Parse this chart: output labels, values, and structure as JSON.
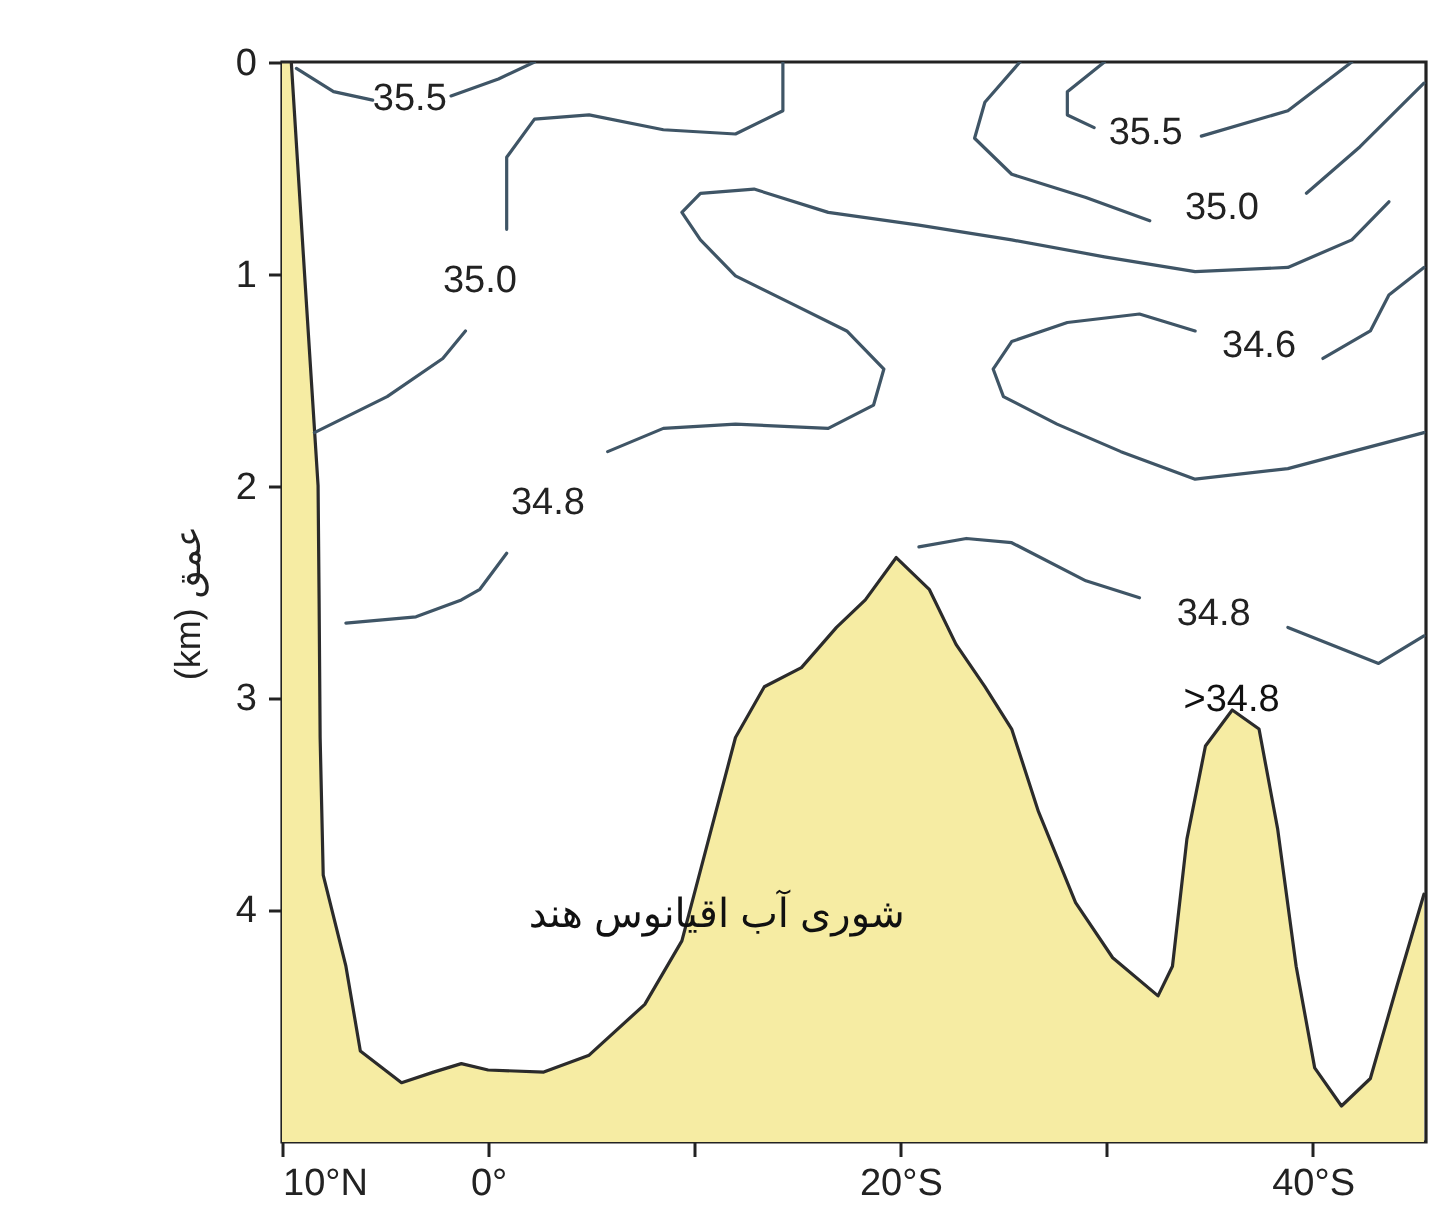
{
  "chart_data": {
    "type": "line",
    "ylabel": "(km) عمق",
    "xlim": [
      10,
      -45.5
    ],
    "ylim": [
      5.1,
      0
    ],
    "xticks": [
      {
        "value": 10,
        "label": "10°N"
      },
      {
        "value": 0,
        "label": "0°"
      },
      {
        "value": -10,
        "label": null
      },
      {
        "value": -20,
        "label": "20°S"
      },
      {
        "value": -30,
        "label": null
      },
      {
        "value": -40,
        "label": "40°S"
      }
    ],
    "yticks": [
      0,
      1,
      2,
      3,
      4
    ],
    "grid": false,
    "series": [
      {
        "type": "line",
        "color": "#2b2b2b",
        "x": [
          10,
          9.55,
          8.9,
          8.25,
          8.2,
          8.15,
          8.0,
          6.9,
          6.2,
          4.2,
          2.65,
          1.3,
          0.0,
          -2.7,
          -4.9,
          -7.6,
          -9.4,
          -10.7,
          -12.0,
          -13.4,
          -15.2,
          -16.9,
          -18.3,
          -19.8,
          -21.4,
          -22.7,
          -24.1,
          -25.4,
          -26.7,
          -28.5,
          -30.3,
          -32.5,
          -33.2,
          -33.9,
          -34.8,
          -36.1,
          -37.4,
          -38.3,
          -39.2,
          -40.1,
          -41.4,
          -42.8,
          -44.1,
          -45.4
        ],
        "values": [
          0,
          0,
          1.01,
          2.0,
          2.54,
          3.19,
          3.84,
          4.27,
          4.67,
          4.82,
          4.77,
          4.73,
          4.76,
          4.77,
          4.69,
          4.45,
          4.15,
          3.67,
          3.19,
          2.95,
          2.86,
          2.67,
          2.54,
          2.34,
          2.49,
          2.75,
          2.95,
          3.15,
          3.54,
          3.97,
          4.23,
          4.41,
          4.27,
          3.67,
          3.23,
          3.06,
          3.15,
          3.62,
          4.27,
          4.75,
          4.93,
          4.8,
          4.36,
          3.93
        ],
        "lower": [
          0,
          0,
          1.01,
          2.0,
          2.54,
          3.19,
          3.84,
          4.27,
          4.67,
          4.82,
          4.77,
          4.73,
          4.76,
          4.77,
          4.69,
          4.45,
          4.15,
          3.67,
          3.19,
          2.95,
          2.86,
          2.67,
          2.54,
          2.34,
          2.49,
          2.75,
          2.95,
          3.15,
          3.54,
          3.97,
          4.23,
          4.41,
          4.27,
          3.67,
          3.23,
          3.06,
          3.15,
          3.62,
          4.27,
          4.75,
          4.93,
          4.8,
          4.36,
          3.93
        ],
        "upper": [
          5.1,
          5.1,
          5.1,
          5.1,
          5.1,
          5.1,
          5.1,
          5.1,
          5.1,
          5.1,
          5.1,
          5.1,
          5.1,
          5.1,
          5.1,
          5.1,
          5.1,
          5.1,
          5.1,
          5.1,
          5.1,
          5.1,
          5.1,
          5.1,
          5.1,
          5.1,
          5.1,
          5.1,
          5.1,
          5.1,
          5.1,
          5.1,
          5.1,
          5.1,
          5.1,
          5.1,
          5.1,
          5.1,
          5.1,
          5.1,
          5.1,
          5.1,
          5.1,
          5.1
        ]
      },
      {
        "name": "35.5",
        "color": "#3f5566",
        "x": [
          9.3,
          7.5,
          5.6,
          3.8,
          1.8,
          -0.5,
          -2.25
        ],
        "values": [
          0.03,
          0.14,
          0.18,
          null,
          0.16,
          0.08,
          0.0
        ]
      },
      {
        "name": "35.0",
        "color": "#3f5566",
        "x": [
          8.43,
          4.9,
          2.2,
          1.1,
          0.4,
          -0.9,
          -0.9,
          -2.25,
          -4.9,
          -8.5,
          -12.0,
          -14.3,
          -14.3
        ],
        "values": [
          1.75,
          1.58,
          1.4,
          1.27,
          null,
          0.79,
          0.45,
          0.27,
          0.25,
          0.32,
          0.34,
          0.23,
          0.0
        ]
      },
      {
        "name": "34.8",
        "color": "#3f5566",
        "x": [
          6.9,
          3.5,
          1.3,
          0.4,
          -0.9,
          -2.9,
          -5.8,
          -8.5,
          -12.0,
          -16.5,
          -18.7,
          -19.2,
          -17.4,
          -14.7,
          -12.0,
          -10.3,
          -9.4,
          -10.3,
          -12.9,
          -16.5,
          -20.9,
          -25.4,
          -29.9,
          -34.3,
          -38.8,
          -41.9,
          -43.7
        ],
        "values": [
          2.65,
          2.62,
          2.54,
          2.49,
          2.32,
          null,
          1.84,
          1.73,
          1.71,
          1.73,
          1.62,
          1.45,
          1.27,
          1.14,
          1.01,
          0.84,
          0.71,
          0.62,
          0.6,
          0.71,
          0.77,
          0.84,
          0.92,
          0.99,
          0.97,
          0.84,
          0.66
        ]
      },
      {
        "name": "35.0",
        "color": "#3f5566",
        "x": [
          -25.8,
          -24.1,
          -23.6,
          -25.4,
          -29.0,
          -32.1,
          -35.6,
          -39.7,
          -42.3,
          -45.4
        ],
        "values": [
          0.0,
          0.19,
          0.36,
          0.53,
          0.64,
          0.75,
          null,
          0.62,
          0.4,
          0.1
        ]
      },
      {
        "name": "35.5",
        "color": "#3f5566",
        "x": [
          -29.9,
          -28.1,
          -28.1,
          -29.4,
          -31.9,
          -34.6,
          -38.8,
          -41.9
        ],
        "values": [
          0.0,
          0.14,
          0.25,
          0.31,
          null,
          0.35,
          0.23,
          0.0
        ]
      },
      {
        "name": "34.6",
        "color": "#3f5566",
        "x": [
          -45.4,
          -43.7,
          -42.8,
          -40.5,
          -37.4,
          -34.3,
          -31.6,
          -28.1,
          -25.4,
          -24.5,
          -25.0,
          -27.6,
          -30.7,
          -34.3,
          -38.8,
          -41.9,
          -45.4
        ],
        "values": [
          0.97,
          1.1,
          1.27,
          1.4,
          null,
          1.27,
          1.19,
          1.23,
          1.32,
          1.45,
          1.58,
          1.71,
          1.84,
          1.97,
          1.92,
          1.84,
          1.75
        ]
      },
      {
        "name": "34.8",
        "color": "#3f5566",
        "x": [
          -20.9,
          -23.2,
          -25.4,
          -29.0,
          -31.6,
          -35.2,
          -38.8,
          -43.2,
          -45.4
        ],
        "values": [
          2.29,
          2.25,
          2.27,
          2.45,
          2.53,
          null,
          2.67,
          2.84,
          2.71
        ]
      }
    ],
    "annotations": [
      "شوری آب اقیانوس هند",
      ">34.8"
    ]
  }
}
